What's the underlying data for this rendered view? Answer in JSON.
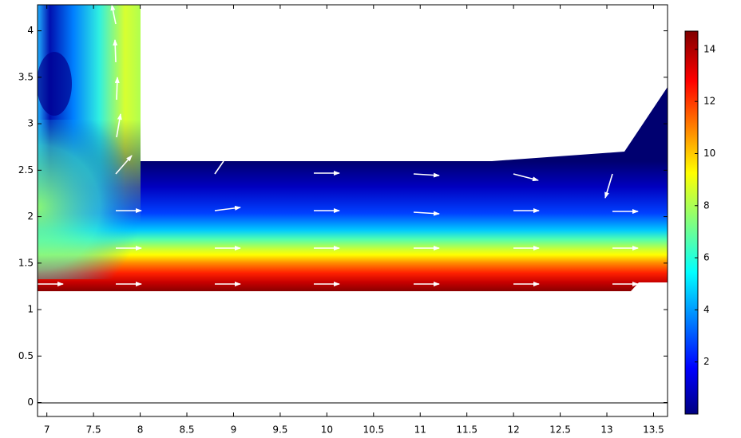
{
  "chart_data": {
    "type": "heatmap",
    "xlim": [
      6.9,
      13.65
    ],
    "xticks": [
      7,
      7.5,
      8,
      8.5,
      9,
      9.5,
      10,
      10.5,
      11,
      11.5,
      12,
      12.5,
      13,
      13.5
    ],
    "ylim": [
      -0.15,
      4.28
    ],
    "yticks": [
      0,
      0.5,
      1,
      1.5,
      2,
      2.5,
      3,
      3.5,
      4
    ],
    "clim": [
      0,
      14.7
    ],
    "cticks": [
      2,
      4,
      6,
      8,
      10,
      12,
      14
    ]
  }
}
